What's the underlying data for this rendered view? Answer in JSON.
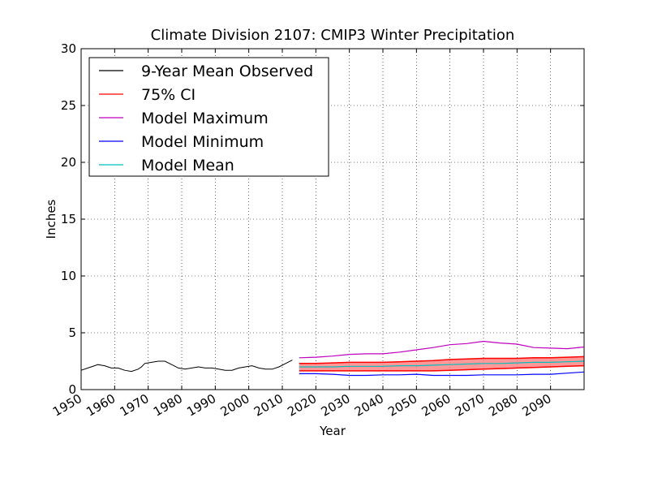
{
  "chart_data": {
    "type": "line",
    "title": "Climate Division 2107: CMIP3 Winter Precipitation",
    "xlabel": "Year",
    "ylabel": "Inches",
    "xlim": [
      1950,
      2100
    ],
    "ylim": [
      0,
      30
    ],
    "xticks": [
      1950,
      1960,
      1970,
      1980,
      1990,
      2000,
      2010,
      2020,
      2030,
      2040,
      2050,
      2060,
      2070,
      2080,
      2090
    ],
    "yticks": [
      0,
      5,
      10,
      15,
      20,
      25,
      30
    ],
    "grid": true,
    "legend_position": "top-left",
    "colors": {
      "observed": "#000000",
      "ci": "#ff0000",
      "ci_fill": "#ff7f7f",
      "model_max": "#bf00bf",
      "model_min": "#0000ff",
      "model_mean": "#00bfbf"
    },
    "legend": [
      {
        "label": "9-Year Mean Observed",
        "color": "#000000"
      },
      {
        "label": "75% CI",
        "color": "#ff0000"
      },
      {
        "label": "Model Maximum",
        "color": "#bf00bf"
      },
      {
        "label": "Model Minimum",
        "color": "#0000ff"
      },
      {
        "label": "Model Mean",
        "color": "#00bfbf"
      }
    ],
    "observed": {
      "name": "9-Year Mean Observed",
      "x": [
        1950,
        1952,
        1954,
        1955,
        1957,
        1959,
        1961,
        1963,
        1965,
        1967,
        1968,
        1969,
        1971,
        1973,
        1975,
        1977,
        1979,
        1981,
        1983,
        1985,
        1987,
        1989,
        1991,
        1993,
        1995,
        1997,
        1999,
        2001,
        2003,
        2005,
        2007,
        2009,
        2011,
        2013
      ],
      "y": [
        1.7,
        1.9,
        2.1,
        2.2,
        2.1,
        1.9,
        1.9,
        1.7,
        1.6,
        1.8,
        2.0,
        2.3,
        2.4,
        2.5,
        2.5,
        2.2,
        1.9,
        1.8,
        1.9,
        2.0,
        1.9,
        1.9,
        1.8,
        1.7,
        1.7,
        1.9,
        2.0,
        2.1,
        1.9,
        1.8,
        1.8,
        2.0,
        2.3,
        2.6
      ]
    },
    "future_x": [
      2015,
      2020,
      2025,
      2030,
      2035,
      2040,
      2045,
      2050,
      2055,
      2060,
      2065,
      2070,
      2075,
      2080,
      2085,
      2090,
      2095,
      2100
    ],
    "ci_upper": [
      2.3,
      2.3,
      2.35,
      2.4,
      2.4,
      2.4,
      2.45,
      2.5,
      2.55,
      2.65,
      2.7,
      2.75,
      2.75,
      2.75,
      2.8,
      2.8,
      2.85,
      2.9
    ],
    "ci_lower": [
      1.65,
      1.65,
      1.65,
      1.65,
      1.65,
      1.65,
      1.65,
      1.65,
      1.65,
      1.7,
      1.75,
      1.8,
      1.85,
      1.9,
      1.95,
      2.0,
      2.05,
      2.1
    ],
    "model_mean": [
      2.0,
      2.0,
      2.0,
      2.05,
      2.05,
      2.05,
      2.1,
      2.1,
      2.15,
      2.2,
      2.25,
      2.3,
      2.3,
      2.35,
      2.4,
      2.4,
      2.45,
      2.5
    ],
    "model_max": [
      2.8,
      2.85,
      2.95,
      3.1,
      3.15,
      3.15,
      3.3,
      3.5,
      3.7,
      3.95,
      4.05,
      4.25,
      4.1,
      4.0,
      3.7,
      3.65,
      3.6,
      3.75
    ],
    "model_min": [
      1.4,
      1.4,
      1.35,
      1.25,
      1.25,
      1.3,
      1.3,
      1.35,
      1.25,
      1.25,
      1.25,
      1.3,
      1.3,
      1.3,
      1.35,
      1.35,
      1.45,
      1.55
    ]
  }
}
